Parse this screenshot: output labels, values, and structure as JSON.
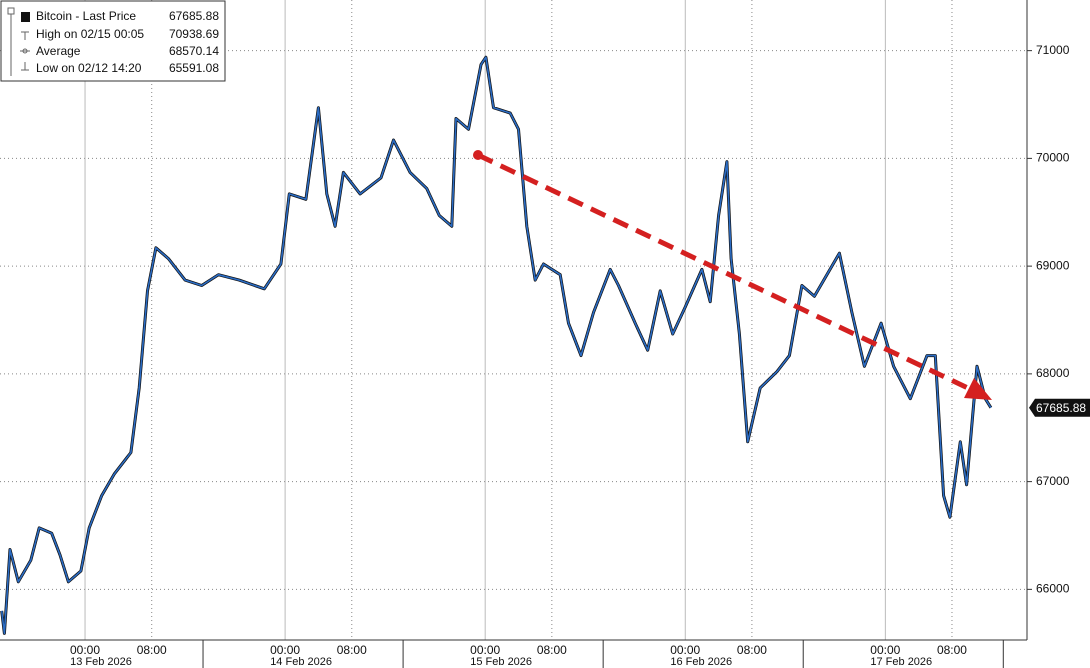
{
  "chart_data": {
    "type": "line",
    "legend_items": [
      {
        "label": "Bitcoin - Last Price",
        "value": 67685.88
      },
      {
        "label": "High on 02/15 00:05",
        "value": 70938.69
      },
      {
        "label": "Average",
        "value": 68570.14
      },
      {
        "label": "Low on 02/12 14:20",
        "value": 65591.08
      }
    ],
    "x": [
      "2026-02-12T14:00",
      "2026-02-12T14:20",
      "2026-02-12T15:00",
      "2026-02-12T16:00",
      "2026-02-12T17:30",
      "2026-02-12T18:30",
      "2026-02-12T20:00",
      "2026-02-12T21:00",
      "2026-02-12T22:00",
      "2026-02-12T23:30",
      "2026-02-13T00:30",
      "2026-02-13T02:00",
      "2026-02-13T03:30",
      "2026-02-13T05:30",
      "2026-02-13T06:30",
      "2026-02-13T07:30",
      "2026-02-13T08:30",
      "2026-02-13T10:00",
      "2026-02-13T12:00",
      "2026-02-13T14:00",
      "2026-02-13T16:00",
      "2026-02-13T18:30",
      "2026-02-13T21:30",
      "2026-02-13T23:30",
      "2026-02-14T00:30",
      "2026-02-14T02:30",
      "2026-02-14T04:00",
      "2026-02-14T05:00",
      "2026-02-14T06:00",
      "2026-02-14T07:00",
      "2026-02-14T09:00",
      "2026-02-14T11:30",
      "2026-02-14T13:00",
      "2026-02-14T15:00",
      "2026-02-14T17:00",
      "2026-02-14T18:30",
      "2026-02-14T20:00",
      "2026-02-14T20:30",
      "2026-02-14T22:00",
      "2026-02-14T23:30",
      "2026-02-15T00:05",
      "2026-02-15T01:00",
      "2026-02-15T03:00",
      "2026-02-15T04:00",
      "2026-02-15T05:00",
      "2026-02-15T06:00",
      "2026-02-15T07:00",
      "2026-02-15T09:00",
      "2026-02-15T10:00",
      "2026-02-15T11:30",
      "2026-02-15T13:00",
      "2026-02-15T15:00",
      "2026-02-15T16:00",
      "2026-02-15T18:00",
      "2026-02-15T19:30",
      "2026-02-15T21:00",
      "2026-02-15T22:30",
      "2026-02-16T00:00",
      "2026-02-16T02:00",
      "2026-02-16T03:00",
      "2026-02-16T04:00",
      "2026-02-16T05:00",
      "2026-02-16T05:30",
      "2026-02-16T06:30",
      "2026-02-16T07:30",
      "2026-02-16T09:00",
      "2026-02-16T11:00",
      "2026-02-16T12:30",
      "2026-02-16T14:00",
      "2026-02-16T15:30",
      "2026-02-16T17:00",
      "2026-02-16T18:30",
      "2026-02-16T20:00",
      "2026-02-16T21:30",
      "2026-02-16T23:30",
      "2026-02-17T01:00",
      "2026-02-17T03:00",
      "2026-02-17T05:00",
      "2026-02-17T06:00",
      "2026-02-17T07:00",
      "2026-02-17T07:45",
      "2026-02-17T09:00",
      "2026-02-17T09:45",
      "2026-02-17T11:00",
      "2026-02-17T12:00",
      "2026-02-17T12:40"
    ],
    "series": [
      {
        "name": "Bitcoin - Last Price",
        "color": "#2b6cc4",
        "values": [
          65800,
          65591.08,
          66370,
          66070,
          66270,
          66570,
          66520,
          66320,
          66070,
          66170,
          66570,
          66870,
          67070,
          67270,
          67870,
          68770,
          69170,
          69070,
          68870,
          68820,
          68920,
          68870,
          68790,
          69020,
          69670,
          69620,
          70470,
          69670,
          69370,
          69870,
          69670,
          69820,
          70170,
          69870,
          69720,
          69470,
          69370,
          70370,
          70270,
          70870,
          70938.69,
          70470,
          70420,
          70270,
          69370,
          68870,
          69020,
          68920,
          68470,
          68170,
          68570,
          68970,
          68820,
          68470,
          68220,
          68770,
          68370,
          68620,
          68970,
          68670,
          69470,
          69970,
          69070,
          68370,
          67370,
          67870,
          68020,
          68170,
          68820,
          68720,
          68920,
          69120,
          68570,
          68070,
          68470,
          68070,
          67770,
          68170,
          68170,
          66870,
          66670,
          67370,
          66970,
          68070,
          67770,
          67685.88
        ]
      }
    ],
    "xlim": [
      "2026-02-12T13:48",
      "2026-02-17T17:00"
    ],
    "xticks": [
      {
        "value": "2026-02-13T00:00",
        "label": "00:00"
      },
      {
        "value": "2026-02-13T08:00",
        "label": "08:00"
      },
      {
        "value": "2026-02-14T00:00",
        "label": "00:00"
      },
      {
        "value": "2026-02-14T08:00",
        "label": "08:00"
      },
      {
        "value": "2026-02-15T00:00",
        "label": "00:00"
      },
      {
        "value": "2026-02-15T08:00",
        "label": "08:00"
      },
      {
        "value": "2026-02-16T00:00",
        "label": "00:00"
      },
      {
        "value": "2026-02-16T08:00",
        "label": "08:00"
      },
      {
        "value": "2026-02-17T00:00",
        "label": "00:00"
      },
      {
        "value": "2026-02-17T08:00",
        "label": "08:00"
      }
    ],
    "xdates": [
      {
        "value": "2026-02-13T00:00",
        "label": "13 Feb 2026"
      },
      {
        "value": "2026-02-14T00:00",
        "label": "14 Feb 2026"
      },
      {
        "value": "2026-02-15T00:00",
        "label": "15 Feb 2026"
      },
      {
        "value": "2026-02-16T00:00",
        "label": "16 Feb 2026"
      },
      {
        "value": "2026-02-17T00:00",
        "label": "17 Feb 2026"
      }
    ],
    "ylim": [
      65530,
      71470
    ],
    "yticks": [
      66000,
      67000,
      68000,
      69000,
      70000,
      71000
    ],
    "grid": true
  }
}
